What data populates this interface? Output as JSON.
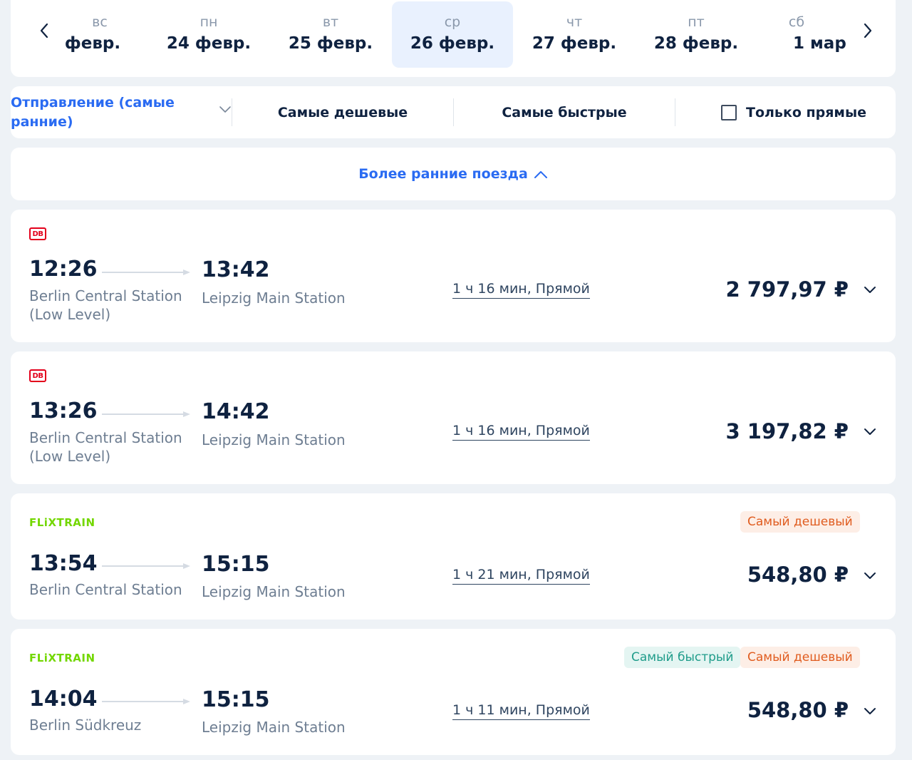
{
  "date_strip": {
    "days": [
      {
        "dow": "вс",
        "date": "февр.",
        "selected": false
      },
      {
        "dow": "пн",
        "date": "24 февр.",
        "selected": false
      },
      {
        "dow": "вт",
        "date": "25 февр.",
        "selected": false
      },
      {
        "dow": "ср",
        "date": "26 февр.",
        "selected": true
      },
      {
        "dow": "чт",
        "date": "27 февр.",
        "selected": false
      },
      {
        "dow": "пт",
        "date": "28 февр.",
        "selected": false
      },
      {
        "dow": "сб",
        "date": "1 мар",
        "selected": false
      }
    ]
  },
  "filters": {
    "sort_label": "Отправление (самые ранние)",
    "cheapest": "Самые дешевые",
    "fastest": "Самые быстрые",
    "direct_only": "Только прямые",
    "direct_only_checked": false
  },
  "earlier_trains": "Более ранние поезда",
  "trains": [
    {
      "operator": "DB",
      "dep_time": "12:26",
      "arr_time": "13:42",
      "dep_station": "Berlin Central Station (Low Level)",
      "arr_station": "Leipzig Main Station",
      "duration": "1 ч 16 мин, Прямой",
      "price": "2 797,97 ₽",
      "badges": []
    },
    {
      "operator": "DB",
      "dep_time": "13:26",
      "arr_time": "14:42",
      "dep_station": "Berlin Central Station (Low Level)",
      "arr_station": "Leipzig Main Station",
      "duration": "1 ч 16 мин, Прямой",
      "price": "3 197,82 ₽",
      "badges": []
    },
    {
      "operator": "FLiXTRAIN",
      "dep_time": "13:54",
      "arr_time": "15:15",
      "dep_station": "Berlin Central Station",
      "arr_station": "Leipzig Main Station",
      "duration": "1 ч 21 мин, Прямой",
      "price": "548,80 ₽",
      "badges": [
        "Самый дешевый"
      ]
    },
    {
      "operator": "FLiXTRAIN",
      "dep_time": "14:04",
      "arr_time": "15:15",
      "dep_station": "Berlin Südkreuz",
      "arr_station": "Leipzig Main Station",
      "duration": "1 ч 11 мин, Прямой",
      "price": "548,80 ₽",
      "badges": [
        "Самый быстрый",
        "Самый дешевый"
      ]
    }
  ],
  "colors": {
    "accent": "#2a6bf2",
    "text": "#0f2240",
    "muted": "#6e7e92",
    "db_red": "#e3001b",
    "flix_green": "#73d700",
    "cheap_badge": "#e05c1f",
    "fast_badge": "#1f9c8a"
  }
}
